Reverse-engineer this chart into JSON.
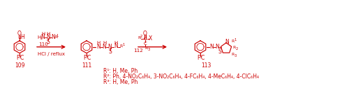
{
  "bg_color": "#ffffff",
  "red": "#cc0000",
  "figsize": [
    5.0,
    1.24
  ],
  "dpi": 100,
  "r1_line": "R¹: H, Me, Ph",
  "r2_line": "R²: Ph, 4-NO₂C₆H₄, 3-NO₂C₆H₄, 4-FC₆H₄, 4-MeC₆H₄, 4-ClC₆H₄",
  "r3_line": "R³: H, Me, Ph",
  "arrow1_below": "HCl / reflux",
  "label_109": "109",
  "label_110": "110",
  "label_111": "111",
  "label_112": "112",
  "label_113": "113"
}
